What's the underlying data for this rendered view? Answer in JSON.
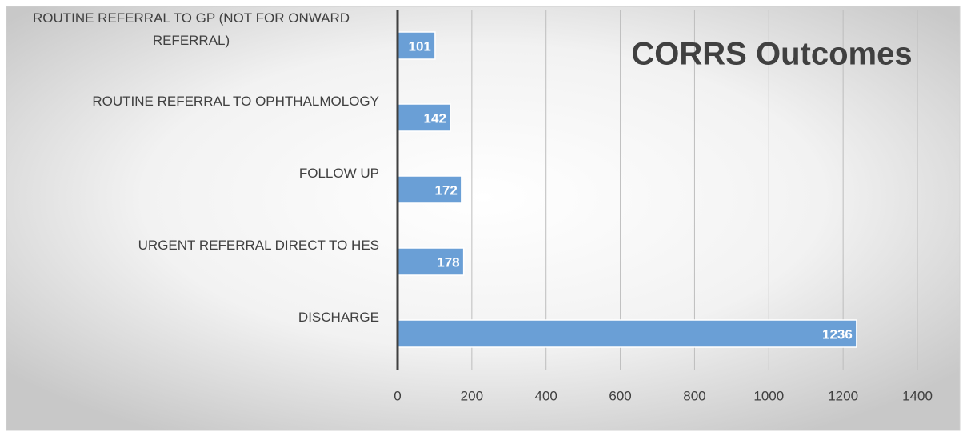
{
  "chart_data": {
    "type": "barh",
    "title": "CORRS Outcomes",
    "categories": [
      "ROUTINE REFERRAL TO GP (NOT FOR ONWARD REFERRAL)",
      "ROUTINE REFERRAL TO OPHTHALMOLOGY",
      "FOLLOW UP",
      "URGENT REFERRAL DIRECT TO HES",
      "DISCHARGE"
    ],
    "values": [
      101,
      142,
      172,
      178,
      1236
    ],
    "color": "#6a9fd6",
    "xlim": [
      0,
      1400
    ],
    "xticks": [
      0,
      200,
      400,
      600,
      800,
      1000,
      1200,
      1400
    ],
    "grid": true
  }
}
